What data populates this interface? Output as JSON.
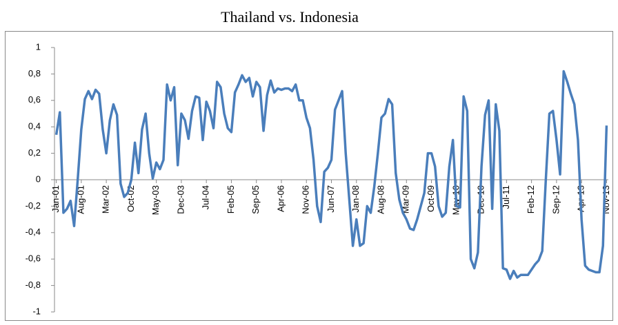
{
  "chart_data": {
    "type": "line",
    "title": "Thailand vs. Indonesia",
    "categories": [
      "Jan-01",
      null,
      null,
      null,
      null,
      null,
      null,
      "Aug-01",
      null,
      null,
      null,
      null,
      null,
      null,
      "Mar-02",
      null,
      null,
      null,
      null,
      null,
      null,
      "Oct-02",
      null,
      null,
      null,
      null,
      null,
      null,
      "May-03",
      null,
      null,
      null,
      null,
      null,
      null,
      "Dec-03",
      null,
      null,
      null,
      null,
      null,
      null,
      "Jul-04",
      null,
      null,
      null,
      null,
      null,
      null,
      "Feb-05",
      null,
      null,
      null,
      null,
      null,
      null,
      "Sep-05",
      null,
      null,
      null,
      null,
      null,
      null,
      "Apr-06",
      null,
      null,
      null,
      null,
      null,
      null,
      "Nov-06",
      null,
      null,
      null,
      null,
      null,
      null,
      "Jun-07",
      null,
      null,
      null,
      null,
      null,
      null,
      "Jan-08",
      null,
      null,
      null,
      null,
      null,
      null,
      "Aug-08",
      null,
      null,
      null,
      null,
      null,
      null,
      "Mar-09",
      null,
      null,
      null,
      null,
      null,
      null,
      "Oct-09",
      null,
      null,
      null,
      null,
      null,
      null,
      "May-10",
      null,
      null,
      null,
      null,
      null,
      null,
      "Dec-10",
      null,
      null,
      null,
      null,
      null,
      null,
      "Jul-11",
      null,
      null,
      null,
      null,
      null,
      null,
      "Feb-12",
      null,
      null,
      null,
      null,
      null,
      null,
      "Sep-12",
      null,
      null,
      null,
      null,
      null,
      null,
      "Apr-13",
      null,
      null,
      null,
      null,
      null,
      null,
      "Nov-13"
    ],
    "values": [
      0.34,
      0.51,
      -0.25,
      -0.22,
      -0.16,
      -0.35,
      0.0,
      0.38,
      0.61,
      0.67,
      0.61,
      0.68,
      0.65,
      0.38,
      0.2,
      0.45,
      0.57,
      0.49,
      -0.03,
      -0.13,
      -0.1,
      0.0,
      0.28,
      0.05,
      0.38,
      0.5,
      0.2,
      0.01,
      0.13,
      0.08,
      0.15,
      0.72,
      0.6,
      0.7,
      0.11,
      0.5,
      0.45,
      0.31,
      0.52,
      0.63,
      0.62,
      0.3,
      0.59,
      0.52,
      0.39,
      0.74,
      0.7,
      0.5,
      0.39,
      0.36,
      0.66,
      0.72,
      0.79,
      0.74,
      0.77,
      0.63,
      0.74,
      0.7,
      0.37,
      0.64,
      0.75,
      0.66,
      0.69,
      0.68,
      0.69,
      0.69,
      0.67,
      0.72,
      0.6,
      0.6,
      0.47,
      0.39,
      0.15,
      -0.2,
      -0.32,
      0.06,
      0.09,
      0.15,
      0.53,
      0.6,
      0.67,
      0.2,
      -0.15,
      -0.5,
      -0.3,
      -0.5,
      -0.48,
      -0.2,
      -0.25,
      -0.05,
      0.2,
      0.47,
      0.5,
      0.61,
      0.57,
      0.05,
      -0.15,
      -0.25,
      -0.3,
      -0.37,
      -0.38,
      -0.3,
      -0.2,
      -0.1,
      0.2,
      0.2,
      0.1,
      -0.2,
      -0.28,
      -0.25,
      0.1,
      0.3,
      -0.2,
      -0.21,
      0.63,
      0.52,
      -0.6,
      -0.67,
      -0.55,
      0.1,
      0.49,
      0.6,
      -0.22,
      0.57,
      0.37,
      -0.67,
      -0.68,
      -0.75,
      -0.69,
      -0.74,
      -0.72,
      -0.72,
      -0.72,
      -0.68,
      -0.64,
      -0.61,
      -0.54,
      0.0,
      0.5,
      0.52,
      0.3,
      0.04,
      0.82,
      0.74,
      0.65,
      0.57,
      0.3,
      -0.3,
      -0.65,
      -0.68,
      -0.69,
      -0.7,
      -0.7,
      -0.5,
      0.41
    ],
    "color": "#4a7ebb",
    "ylim": [
      -1,
      1
    ],
    "yticks": [
      -1,
      {
        "value": -0.8,
        "label": "-0,8"
      },
      {
        "value": -0.6,
        "label": "-0,6"
      },
      {
        "value": -0.4,
        "label": "-0,4"
      },
      {
        "value": -0.2,
        "label": "-0,2"
      },
      0,
      {
        "value": 0.2,
        "label": "0,2"
      },
      {
        "value": 0.4,
        "label": "0,4"
      },
      {
        "value": 0.6,
        "label": "0,6"
      },
      {
        "value": 0.8,
        "label": "0,8"
      },
      1
    ],
    "grid": false
  }
}
